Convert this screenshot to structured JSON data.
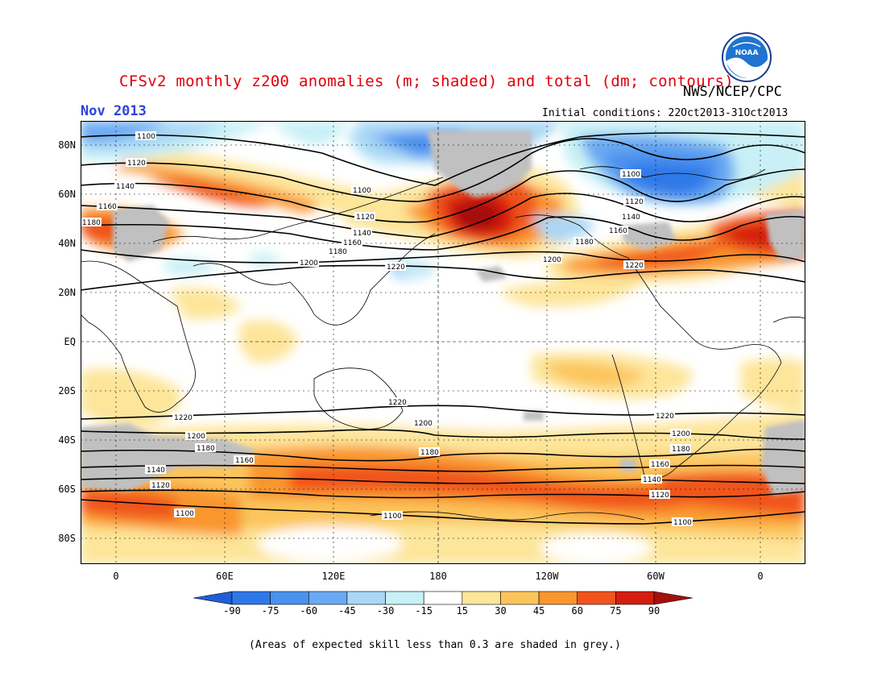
{
  "title": "CFSv2 monthly z200 anomalies (m; shaded) and total (dm; contours)",
  "credit": "NWS/NCEP/CPC",
  "logo_text": "NOAA",
  "period": "Nov 2013",
  "initial_conditions": "Initial conditions: 22Oct2013-31Oct2013",
  "footnote": "(Areas of expected skill less than 0.3 are shaded in grey.)",
  "lat_labels": [
    "80N",
    "60N",
    "40N",
    "20N",
    "EQ",
    "20S",
    "40S",
    "60S",
    "80S"
  ],
  "lon_labels": [
    "0",
    "60E",
    "120E",
    "180",
    "120W",
    "60W",
    "0"
  ],
  "colorbar": {
    "labels": [
      "-90",
      "-75",
      "-60",
      "-45",
      "-30",
      "-15",
      "15",
      "30",
      "45",
      "60",
      "75",
      "90"
    ],
    "colors": [
      "#1f5fd6",
      "#2f78e8",
      "#4b91ee",
      "#6aaaf2",
      "#a9d7f5",
      "#c8f0f6",
      "#ffffff",
      "#fde59a",
      "#fcc55c",
      "#f9962f",
      "#f0541c",
      "#d41e10",
      "#a50f0c"
    ]
  },
  "contour_labels": [
    "1100",
    "1120",
    "1140",
    "1160",
    "1180",
    "1200",
    "1220"
  ],
  "colors": {
    "title": "#e0000a",
    "period": "#2b44d8",
    "skill_mask": "#c0c0c0"
  }
}
